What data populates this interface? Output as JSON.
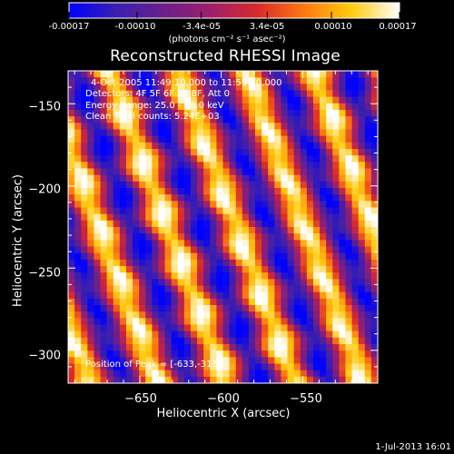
{
  "colorbar": {
    "ticks": [
      "-0.00017",
      "-0.00010",
      "-3.4e-05",
      "3.4e-05",
      "0.00010",
      "0.00017"
    ],
    "tick_values": [
      -0.00017,
      -0.0001,
      -3.4e-05,
      3.4e-05,
      0.0001,
      0.00017
    ],
    "unit": "(photons cm⁻² s⁻¹ asec⁻²)",
    "colormap": [
      "#0000ff",
      "#3a1fb0",
      "#6a1f8c",
      "#a01e6b",
      "#d92a2a",
      "#ff7a10",
      "#ffcc10",
      "#ffffff"
    ]
  },
  "title": "Reconstructed RHESSI Image",
  "info": {
    "time": "4-Oct-2005 11:49:10.000 to 11:55:10.000",
    "detectors": "Detectors: 4F 5F 6F 7F 8F, Att 0",
    "energy": "Energy Range: 25.0 - 50.0 keV",
    "clean": "Clean     Total counts: 5.24E+03"
  },
  "peak": "Position of Peak = [-633,-313]",
  "footer": "1-Jul-2013 16:01",
  "chart_data": {
    "type": "heatmap",
    "title": "Reconstructed RHESSI Image",
    "xlabel": "Heliocentric X (arcsec)",
    "ylabel": "Heliocentric Y (arcsec)",
    "xlim": [
      -694,
      -504
    ],
    "ylim": [
      -320,
      -130
    ],
    "xticks": [
      -650,
      -600,
      -550
    ],
    "yticks": [
      -150,
      -200,
      -250,
      -300
    ],
    "xtick_labels": [
      "−650",
      "−600",
      "−550"
    ],
    "ytick_labels": [
      "−150",
      "−200",
      "−250",
      "−300"
    ],
    "value_range": [
      -0.00017,
      0.00017
    ],
    "pattern": {
      "description_values": "diagonal fringe stripes from the RHESSI modulation pattern",
      "stripe_period_arcsec": 42,
      "stripe_tilt": 0.38,
      "peak_position": [
        -633,
        -313
      ]
    }
  }
}
